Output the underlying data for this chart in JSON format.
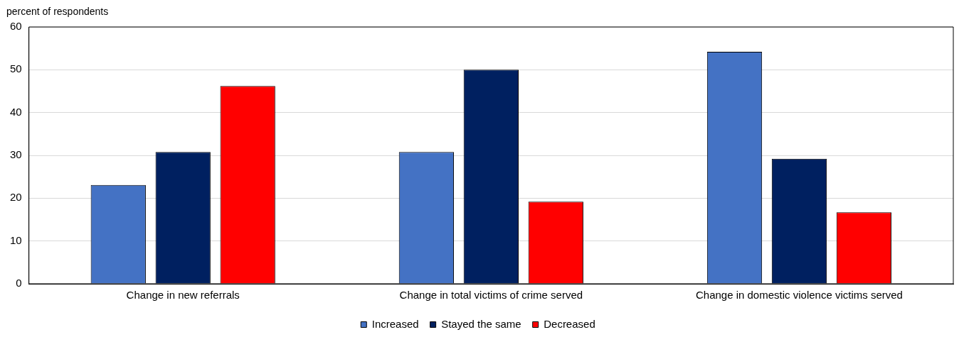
{
  "chart_data": {
    "type": "bar",
    "ylabel": "percent of respondents",
    "categories": [
      "Change in new referrals",
      "Change in total victims of crime served",
      "Change in domestic violence victims served"
    ],
    "series": [
      {
        "name": "Increased",
        "color": "#4472c4",
        "values": [
          23.1,
          30.8,
          54.2
        ]
      },
      {
        "name": "Stayed the same",
        "color": "#002060",
        "values": [
          30.8,
          50,
          29.2
        ]
      },
      {
        "name": "Decreased",
        "color": "#ff0000",
        "values": [
          46.2,
          19.2,
          16.7
        ]
      }
    ],
    "ylim": [
      0,
      60
    ],
    "yticks": [
      0,
      10,
      20,
      30,
      40,
      50,
      60
    ],
    "grid": "y",
    "legend": "bottom"
  }
}
